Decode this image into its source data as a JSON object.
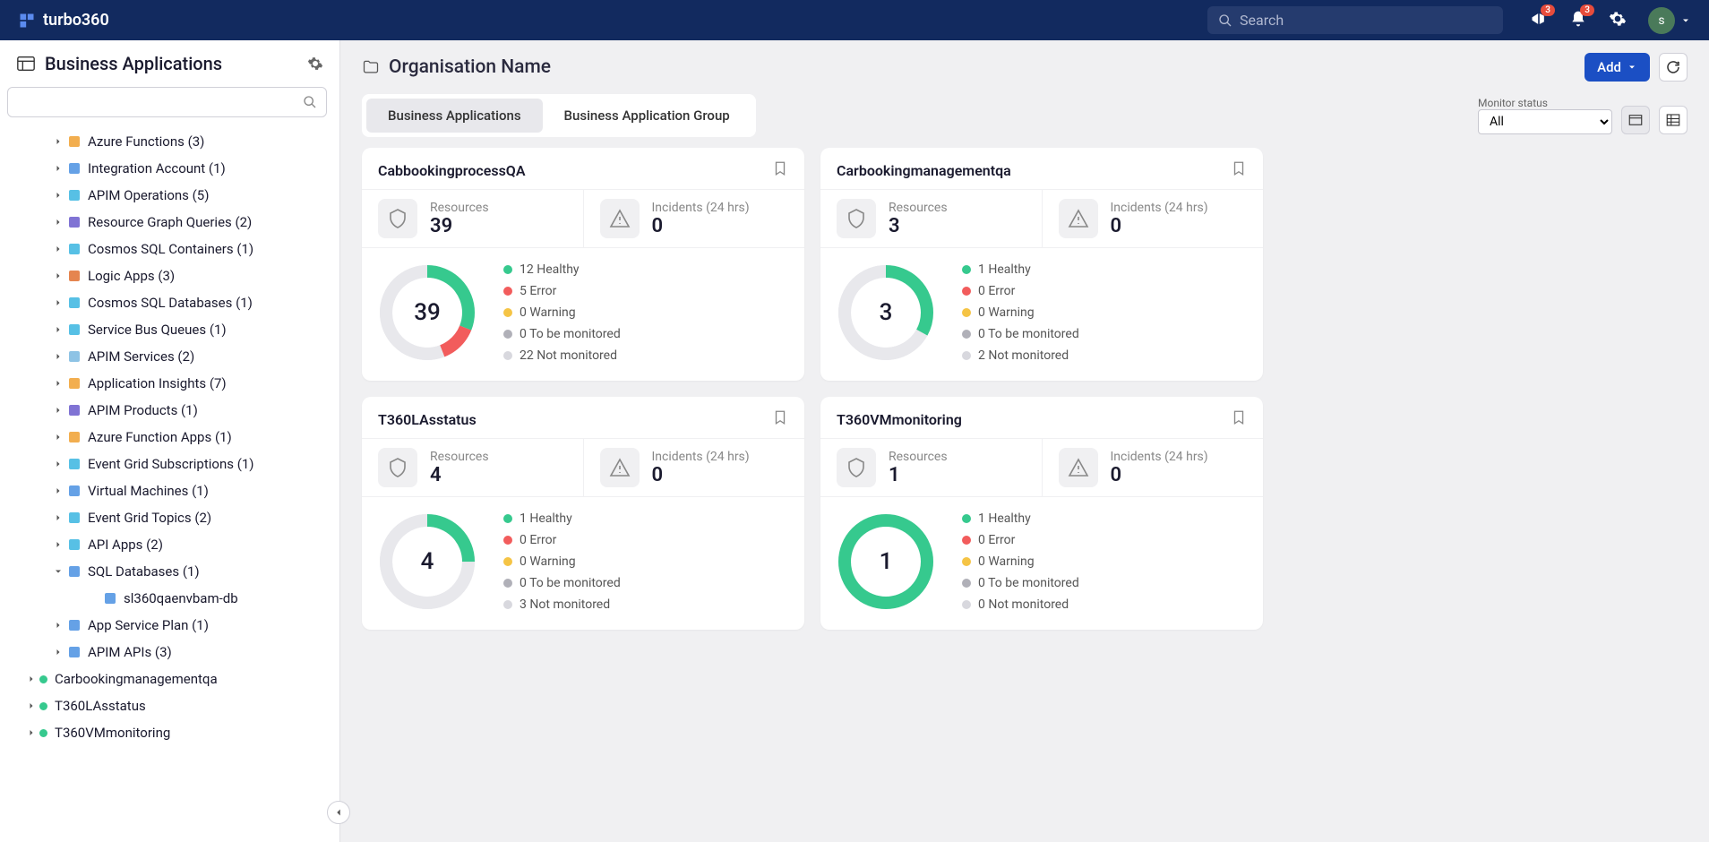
{
  "brand": "turbo360",
  "search_placeholder": "Search",
  "notif1_badge": "3",
  "notif2_badge": "3",
  "avatar_letter": "s",
  "sidebar_title": "Business Applications",
  "org_title": "Organisation Name",
  "add_label": "Add",
  "tabs": {
    "ba": "Business Applications",
    "bag": "Business Application Group"
  },
  "filter": {
    "label": "Monitor status",
    "value": "All"
  },
  "tree": {
    "items": [
      {
        "indent": 56,
        "chev": "right",
        "icon": "fn",
        "color": "#f0a030",
        "label": "Azure Functions (3)"
      },
      {
        "indent": 56,
        "chev": "right",
        "icon": "ia",
        "color": "#4a90e2",
        "label": "Integration Account (1)"
      },
      {
        "indent": 56,
        "chev": "right",
        "icon": "api",
        "color": "#3ab5e0",
        "label": "APIM Operations (5)"
      },
      {
        "indent": 56,
        "chev": "right",
        "icon": "rg",
        "color": "#6a5acd",
        "label": "Resource Graph Queries (2)"
      },
      {
        "indent": 56,
        "chev": "right",
        "icon": "cos",
        "color": "#3ab5e0",
        "label": "Cosmos SQL Containers (1)"
      },
      {
        "indent": 56,
        "chev": "right",
        "icon": "la",
        "color": "#e07030",
        "label": "Logic Apps (3)"
      },
      {
        "indent": 56,
        "chev": "right",
        "icon": "cos",
        "color": "#3ab5e0",
        "label": "Cosmos SQL Databases (1)"
      },
      {
        "indent": 56,
        "chev": "right",
        "icon": "sb",
        "color": "#3ab5e0",
        "label": "Service Bus Queues (1)"
      },
      {
        "indent": 56,
        "chev": "right",
        "icon": "api",
        "color": "#7ab8e0",
        "label": "APIM Services (2)"
      },
      {
        "indent": 56,
        "chev": "right",
        "icon": "ai",
        "color": "#f0a030",
        "label": "Application Insights (7)"
      },
      {
        "indent": 56,
        "chev": "right",
        "icon": "api",
        "color": "#6a5acd",
        "label": "APIM Products (1)"
      },
      {
        "indent": 56,
        "chev": "right",
        "icon": "fn",
        "color": "#f0a030",
        "label": "Azure Function Apps (1)"
      },
      {
        "indent": 56,
        "chev": "right",
        "icon": "eg",
        "color": "#3ab5e0",
        "label": "Event Grid Subscriptions (1)"
      },
      {
        "indent": 56,
        "chev": "right",
        "icon": "vm",
        "color": "#4a90e2",
        "label": "Virtual Machines (1)"
      },
      {
        "indent": 56,
        "chev": "right",
        "icon": "eg",
        "color": "#3ab5e0",
        "label": "Event Grid Topics (2)"
      },
      {
        "indent": 56,
        "chev": "right",
        "icon": "api",
        "color": "#3ab5e0",
        "label": "API Apps (2)"
      },
      {
        "indent": 56,
        "chev": "down",
        "icon": "sql",
        "color": "#4a90e2",
        "label": "SQL Databases (1)"
      },
      {
        "indent": 96,
        "chev": "",
        "icon": "db",
        "color": "#4a90e2",
        "label": "sl360qaenvbam-db"
      },
      {
        "indent": 56,
        "chev": "right",
        "icon": "asp",
        "color": "#4a90e2",
        "label": "App Service Plan (1)"
      },
      {
        "indent": 56,
        "chev": "right",
        "icon": "api",
        "color": "#4a90e2",
        "label": "APIM APIs (3)"
      },
      {
        "indent": 26,
        "chev": "right",
        "dot": true,
        "label": "Carbookingmanagementqa"
      },
      {
        "indent": 26,
        "chev": "right",
        "dot": true,
        "label": "T360LAsstatus"
      },
      {
        "indent": 26,
        "chev": "right",
        "dot": true,
        "label": "T360VMmonitoring"
      }
    ]
  },
  "status_colors": {
    "healthy": "#36c98e",
    "error": "#f25c5c",
    "warning": "#f5c445",
    "tbm": "#b0b0b8",
    "nm": "#d8d8de"
  },
  "cards": [
    {
      "title": "CabbookingprocessQA",
      "resources": "39",
      "incidents": "0",
      "donut_total": "39",
      "segments": [
        {
          "color": "#36c98e",
          "pct": 31
        },
        {
          "color": "#f25c5c",
          "pct": 13
        },
        {
          "color": "#e8e8ec",
          "pct": 56
        }
      ],
      "legend": [
        {
          "c": "#36c98e",
          "t": "12 Healthy"
        },
        {
          "c": "#f25c5c",
          "t": "5 Error"
        },
        {
          "c": "#f5c445",
          "t": "0 Warning"
        },
        {
          "c": "#b0b0b8",
          "t": "0 To be monitored"
        },
        {
          "c": "#d8d8de",
          "t": "22 Not monitored"
        }
      ]
    },
    {
      "title": "Carbookingmanagementqa",
      "resources": "3",
      "incidents": "0",
      "donut_total": "3",
      "segments": [
        {
          "color": "#36c98e",
          "pct": 33
        },
        {
          "color": "#e8e8ec",
          "pct": 67
        }
      ],
      "legend": [
        {
          "c": "#36c98e",
          "t": "1 Healthy"
        },
        {
          "c": "#f25c5c",
          "t": "0 Error"
        },
        {
          "c": "#f5c445",
          "t": "0 Warning"
        },
        {
          "c": "#b0b0b8",
          "t": "0 To be monitored"
        },
        {
          "c": "#d8d8de",
          "t": "2 Not monitored"
        }
      ]
    },
    {
      "title": "T360LAsstatus",
      "resources": "4",
      "incidents": "0",
      "donut_total": "4",
      "segments": [
        {
          "color": "#36c98e",
          "pct": 25
        },
        {
          "color": "#e8e8ec",
          "pct": 75
        }
      ],
      "legend": [
        {
          "c": "#36c98e",
          "t": "1 Healthy"
        },
        {
          "c": "#f25c5c",
          "t": "0 Error"
        },
        {
          "c": "#f5c445",
          "t": "0 Warning"
        },
        {
          "c": "#b0b0b8",
          "t": "0 To be monitored"
        },
        {
          "c": "#d8d8de",
          "t": "3 Not monitored"
        }
      ]
    },
    {
      "title": "T360VMmonitoring",
      "resources": "1",
      "incidents": "0",
      "donut_total": "1",
      "segments": [
        {
          "color": "#36c98e",
          "pct": 100
        }
      ],
      "legend": [
        {
          "c": "#36c98e",
          "t": "1 Healthy"
        },
        {
          "c": "#f25c5c",
          "t": "0 Error"
        },
        {
          "c": "#f5c445",
          "t": "0 Warning"
        },
        {
          "c": "#b0b0b8",
          "t": "0 To be monitored"
        },
        {
          "c": "#d8d8de",
          "t": "0 Not monitored"
        }
      ]
    }
  ],
  "stat_labels": {
    "resources": "Resources",
    "incidents": "Incidents (24 hrs)"
  }
}
